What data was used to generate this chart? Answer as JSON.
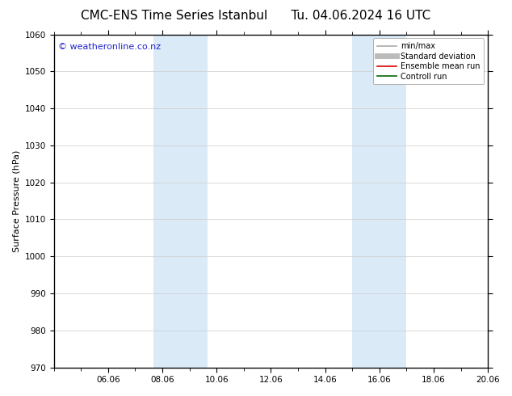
{
  "title": "CMC-ENS Time Series Istanbul      Tu. 04.06.2024 16 UTC",
  "ylabel": "Surface Pressure (hPa)",
  "ylim": [
    970,
    1060
  ],
  "yticks": [
    970,
    980,
    990,
    1000,
    1010,
    1020,
    1030,
    1040,
    1050,
    1060
  ],
  "xlim_days": [
    0,
    16
  ],
  "xtick_labels": [
    "06.06",
    "08.06",
    "10.06",
    "12.06",
    "14.06",
    "16.06",
    "18.06",
    "20.06"
  ],
  "xtick_positions_days": [
    2,
    4,
    6,
    8,
    10,
    12,
    14,
    16
  ],
  "shaded_regions": [
    {
      "start": 3.667,
      "end": 5.667,
      "color": "#daeaf7"
    },
    {
      "start": 11.0,
      "end": 13.0,
      "color": "#daeaf7"
    }
  ],
  "watermark_text": "© weatheronline.co.nz",
  "watermark_color": "#2222cc",
  "watermark_fontsize": 8,
  "bg_color": "#ffffff",
  "grid_color": "#cccccc",
  "legend_entries": [
    {
      "label": "min/max",
      "color": "#aaaaaa",
      "lw": 1.2,
      "style": "solid"
    },
    {
      "label": "Standard deviation",
      "color": "#bbbbbb",
      "lw": 5,
      "style": "solid"
    },
    {
      "label": "Ensemble mean run",
      "color": "#dd0000",
      "lw": 1.2,
      "style": "solid"
    },
    {
      "label": "Controll run",
      "color": "#006600",
      "lw": 1.2,
      "style": "solid"
    }
  ],
  "title_fontsize": 11,
  "axis_label_fontsize": 8,
  "tick_fontsize": 7.5
}
